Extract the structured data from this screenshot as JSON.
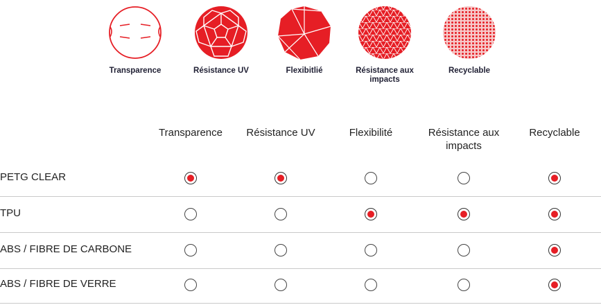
{
  "accent_color": "#e61e25",
  "legend": {
    "items": [
      {
        "label": "Transparence",
        "icon": "transparent-sphere-icon"
      },
      {
        "label": "Résistance UV",
        "icon": "soccer-ball-sphere-icon"
      },
      {
        "label": "Flexibitlié",
        "icon": "faceted-polygon-icon"
      },
      {
        "label": "Résistance aux impacts",
        "icon": "geodesic-sphere-icon"
      },
      {
        "label": "Recyclable",
        "icon": "dotted-sphere-icon"
      }
    ]
  },
  "table": {
    "columns": [
      "Transparence",
      "Résistance UV",
      "Flexibilité",
      "Résistance aux impacts",
      "Recyclable"
    ],
    "rows": [
      {
        "name": "PETG CLEAR",
        "values": [
          true,
          true,
          false,
          false,
          true
        ]
      },
      {
        "name": "TPU",
        "values": [
          false,
          false,
          true,
          true,
          true
        ]
      },
      {
        "name": "ABS / FIBRE DE CARBONE",
        "values": [
          false,
          false,
          false,
          false,
          true
        ]
      },
      {
        "name": "ABS / FIBRE DE VERRE",
        "values": [
          false,
          false,
          false,
          false,
          true
        ]
      }
    ]
  }
}
